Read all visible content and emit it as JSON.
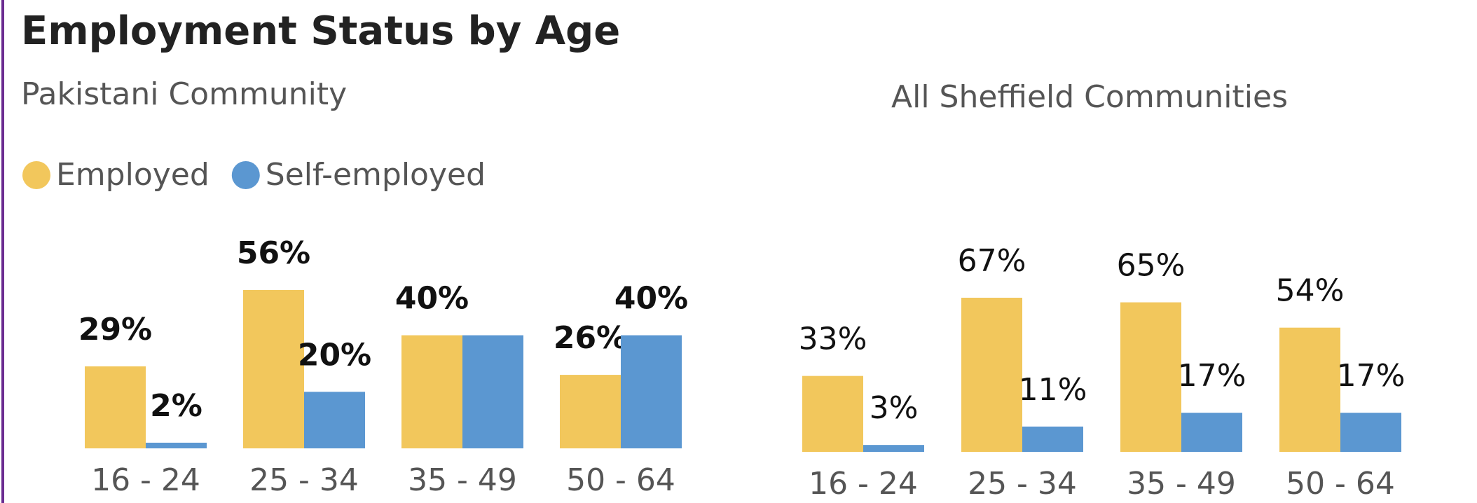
{
  "chart_data": [
    {
      "type": "bar",
      "title": "Employment Status by Age",
      "subtitle": "Pakistani Community",
      "categories": [
        "16 - 24",
        "25 - 34",
        "35 - 49",
        "50 - 64"
      ],
      "label_weight": "bold",
      "series": [
        {
          "name": "Employed",
          "color": "#F2C75C",
          "values": [
            29,
            56,
            40,
            26
          ],
          "value_labels": [
            "29%",
            "56%",
            "40%",
            "26%"
          ]
        },
        {
          "name": "Self-employed",
          "color": "#5B97D1",
          "values": [
            2,
            20,
            40,
            40
          ],
          "value_labels": [
            "2%",
            "20%",
            null,
            "40%"
          ]
        }
      ]
    },
    {
      "type": "bar",
      "subtitle": "All Sheffield Communities",
      "categories": [
        "16 - 24",
        "25 - 34",
        "35 - 49",
        "50 - 64"
      ],
      "label_weight": "normal",
      "series": [
        {
          "color": "#F2C75C",
          "values": [
            33,
            67,
            65,
            54
          ],
          "value_labels": [
            "33%",
            "67%",
            "65%",
            "54%"
          ]
        },
        {
          "color": "#5B97D1",
          "values": [
            3,
            11,
            17,
            17
          ],
          "value_labels": [
            "3%",
            "11%",
            "17%",
            "17%"
          ]
        }
      ]
    }
  ]
}
